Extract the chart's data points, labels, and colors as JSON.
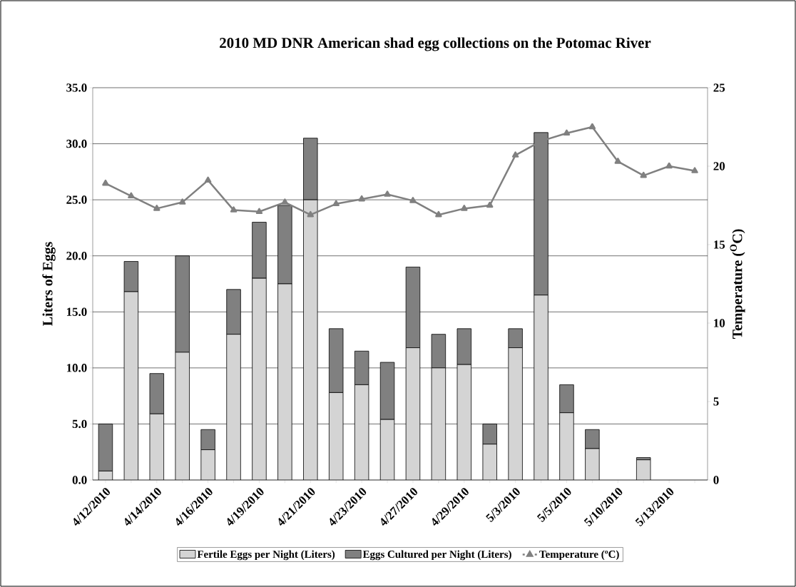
{
  "chart_data": {
    "type": "bar",
    "title": "2010 MD DNR American shad egg collections on the Potomac River",
    "ylabel": "Liters of Eggs",
    "y2label": "Temperature ($^{O}$C)",
    "categories": [
      "4/12/2010",
      null,
      "4/14/2010",
      null,
      "4/16/2010",
      null,
      "4/19/2010",
      null,
      "4/21/2010",
      null,
      "4/23/2010",
      null,
      "4/27/2010",
      null,
      "4/29/2010",
      null,
      "5/3/2010",
      null,
      "5/5/2010",
      null,
      "5/10/2010",
      null,
      "5/13/2010",
      null
    ],
    "stacked": true,
    "grid": "y",
    "legend": "bottom",
    "ylim": [
      0,
      35
    ],
    "yticks": [
      {
        "value": 0,
        "label": "0.0"
      },
      {
        "value": 5,
        "label": "5.0"
      },
      {
        "value": 10,
        "label": "10.0"
      },
      {
        "value": 15,
        "label": "15.0"
      },
      {
        "value": 20,
        "label": "20.0"
      },
      {
        "value": 25,
        "label": "25.0"
      },
      {
        "value": 30,
        "label": "30.0"
      },
      {
        "value": 35,
        "label": "35.0"
      }
    ],
    "y2lim": [
      0,
      25
    ],
    "y2ticks": [
      0,
      5,
      10,
      15,
      20,
      25
    ],
    "series": [
      {
        "name": "Fertile Eggs per Night (Liters)",
        "color": "#d4d4d4",
        "values": [
          0.8,
          16.8,
          5.9,
          11.4,
          2.7,
          13.0,
          18.0,
          17.5,
          25.0,
          7.8,
          8.5,
          5.4,
          11.8,
          10.0,
          10.3,
          3.2,
          11.8,
          16.5,
          6.0,
          2.8,
          null,
          1.8,
          null,
          null
        ]
      },
      {
        "name": "Eggs Cultured per Night (Liters)",
        "color": "#808080",
        "values": [
          4.2,
          2.7,
          3.6,
          8.6,
          1.8,
          4.0,
          5.0,
          7.0,
          5.5,
          5.7,
          3.0,
          5.1,
          7.2,
          3.0,
          3.2,
          1.8,
          1.7,
          14.5,
          2.5,
          1.7,
          null,
          0.2,
          null,
          null
        ]
      },
      {
        "name": "Temperature (ºC)",
        "type": "line",
        "axis": "y2",
        "marker": "triangle",
        "color": "#808080",
        "values": [
          18.9,
          18.1,
          17.3,
          17.7,
          19.1,
          17.2,
          17.1,
          17.7,
          16.9,
          17.6,
          17.9,
          18.2,
          17.8,
          16.9,
          17.3,
          17.5,
          20.7,
          21.6,
          22.1,
          22.5,
          20.3,
          19.4,
          20.0,
          19.7
        ]
      }
    ]
  }
}
